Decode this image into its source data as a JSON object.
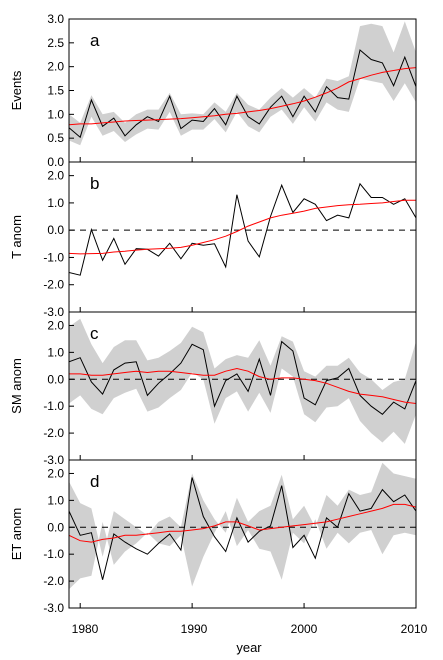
{
  "chart_data": [
    {
      "type": "line",
      "panel_label": "a",
      "ylabel": "Events",
      "ylim": [
        0.0,
        3.0
      ],
      "yticks": [
        "0.0",
        "0.5",
        "1.0",
        "1.5",
        "2.0",
        "2.5",
        "3.0"
      ],
      "xlim": [
        1979,
        2010
      ],
      "x": [
        1979,
        1980,
        1981,
        1982,
        1983,
        1984,
        1985,
        1986,
        1987,
        1988,
        1989,
        1990,
        1991,
        1992,
        1993,
        1994,
        1995,
        1996,
        1997,
        1998,
        1999,
        2000,
        2001,
        2002,
        2003,
        2004,
        2005,
        2006,
        2007,
        2008,
        2009,
        2010
      ],
      "zero_line": false,
      "series": [
        {
          "color": "#000000",
          "values": [
            0.72,
            0.52,
            1.3,
            0.75,
            0.92,
            0.55,
            0.78,
            0.95,
            0.85,
            1.38,
            0.7,
            0.88,
            0.85,
            1.12,
            0.78,
            1.38,
            0.95,
            0.8,
            1.15,
            1.38,
            0.95,
            1.38,
            1.05,
            1.58,
            1.35,
            1.32,
            2.35,
            2.15,
            2.08,
            1.6,
            2.2,
            1.58
          ]
        },
        {
          "color": "#ff0000",
          "values": [
            0.78,
            0.8,
            0.8,
            0.82,
            0.84,
            0.86,
            0.87,
            0.88,
            0.89,
            0.9,
            0.91,
            0.93,
            0.95,
            0.97,
            1.0,
            1.02,
            1.05,
            1.08,
            1.12,
            1.17,
            1.22,
            1.28,
            1.36,
            1.45,
            1.55,
            1.68,
            1.75,
            1.82,
            1.88,
            1.92,
            1.96,
            1.98
          ]
        }
      ],
      "band_upper": [
        1.0,
        0.82,
        1.4,
        1.0,
        1.05,
        0.82,
        1.0,
        1.1,
        1.1,
        1.45,
        1.0,
        1.02,
        1.0,
        1.25,
        1.05,
        1.45,
        1.2,
        1.1,
        1.35,
        1.55,
        1.35,
        1.55,
        1.35,
        1.75,
        1.7,
        1.8,
        2.85,
        2.9,
        2.85,
        2.3,
        2.95,
        2.3
      ],
      "band_lower": [
        0.45,
        0.35,
        0.95,
        0.55,
        0.65,
        0.42,
        0.58,
        0.7,
        0.68,
        1.05,
        0.55,
        0.68,
        0.68,
        0.9,
        0.62,
        1.05,
        0.75,
        0.62,
        0.95,
        1.1,
        0.8,
        1.15,
        0.85,
        1.25,
        1.1,
        1.05,
        1.75,
        1.7,
        1.65,
        1.28,
        1.65,
        1.25
      ]
    },
    {
      "type": "line",
      "panel_label": "b",
      "ylabel": "T anom",
      "ylim": [
        -3.0,
        2.5
      ],
      "yticks": [
        "-3.0",
        "-2.0",
        "-1.0",
        "0.0",
        "1.0",
        "2.0"
      ],
      "xlim": [
        1979,
        2010
      ],
      "x": [
        1979,
        1980,
        1981,
        1982,
        1983,
        1984,
        1985,
        1986,
        1987,
        1988,
        1989,
        1990,
        1991,
        1992,
        1993,
        1994,
        1995,
        1996,
        1997,
        1998,
        1999,
        2000,
        2001,
        2002,
        2003,
        2004,
        2005,
        2006,
        2007,
        2008,
        2009,
        2010
      ],
      "zero_line": true,
      "series": [
        {
          "color": "#000000",
          "values": [
            -1.55,
            -1.65,
            0.02,
            -1.1,
            -0.3,
            -1.25,
            -0.68,
            -0.7,
            -0.95,
            -0.48,
            -1.05,
            -0.48,
            -0.55,
            -0.5,
            -1.35,
            1.3,
            -0.4,
            -0.98,
            0.5,
            1.65,
            0.65,
            1.15,
            0.95,
            0.35,
            0.55,
            0.45,
            1.7,
            1.2,
            1.2,
            0.95,
            1.15,
            0.45
          ]
        },
        {
          "color": "#ff0000",
          "values": [
            -0.85,
            -0.87,
            -0.86,
            -0.85,
            -0.8,
            -0.77,
            -0.73,
            -0.7,
            -0.68,
            -0.66,
            -0.63,
            -0.55,
            -0.45,
            -0.35,
            -0.22,
            -0.05,
            0.15,
            0.3,
            0.45,
            0.55,
            0.62,
            0.7,
            0.8,
            0.85,
            0.9,
            0.93,
            0.95,
            0.98,
            1.0,
            1.05,
            1.1,
            1.1
          ]
        }
      ]
    },
    {
      "type": "line",
      "panel_label": "c",
      "ylabel": "SM anom",
      "ylim": [
        -3.0,
        2.5
      ],
      "yticks": [
        "-3.0",
        "-2.0",
        "-1.0",
        "0.0",
        "1.0",
        "2.0"
      ],
      "xlim": [
        1979,
        2010
      ],
      "x": [
        1979,
        1980,
        1981,
        1982,
        1983,
        1984,
        1985,
        1986,
        1987,
        1988,
        1989,
        1990,
        1991,
        1992,
        1993,
        1994,
        1995,
        1996,
        1997,
        1998,
        1999,
        2000,
        2001,
        2002,
        2003,
        2004,
        2005,
        2006,
        2007,
        2008,
        2009,
        2010
      ],
      "zero_line": true,
      "series": [
        {
          "color": "#000000",
          "values": [
            0.65,
            0.8,
            -0.1,
            -0.55,
            0.35,
            0.6,
            0.65,
            -0.6,
            -0.15,
            0.2,
            0.6,
            1.3,
            1.1,
            -1.0,
            -0.05,
            0.2,
            -0.45,
            0.75,
            -0.6,
            1.4,
            1.05,
            -0.7,
            -0.95,
            -0.05,
            0.05,
            0.4,
            -0.6,
            -1.0,
            -1.3,
            -0.85,
            -1.1,
            -0.05
          ]
        },
        {
          "color": "#ff0000",
          "values": [
            0.2,
            0.2,
            0.15,
            0.15,
            0.2,
            0.25,
            0.3,
            0.25,
            0.3,
            0.3,
            0.25,
            0.2,
            0.15,
            0.15,
            0.3,
            0.4,
            0.3,
            0.1,
            0.0,
            0.05,
            0.05,
            0.0,
            -0.05,
            -0.15,
            -0.3,
            -0.45,
            -0.55,
            -0.6,
            -0.65,
            -0.75,
            -0.85,
            -0.9
          ]
        }
      ],
      "band_upper": [
        1.95,
        2.25,
        1.3,
        0.6,
        1.2,
        1.45,
        1.45,
        0.7,
        0.8,
        1.05,
        1.35,
        1.95,
        1.75,
        0.4,
        0.75,
        0.9,
        0.8,
        1.45,
        0.5,
        1.6,
        1.4,
        0.3,
        0.1,
        0.5,
        0.5,
        0.8,
        0.25,
        0.0,
        -0.4,
        -0.1,
        0.0,
        1.4
      ],
      "band_lower": [
        -0.9,
        -0.6,
        -1.1,
        -1.3,
        -0.7,
        -0.5,
        -0.35,
        -1.2,
        -1.05,
        -0.7,
        -0.4,
        0.25,
        0.0,
        -1.65,
        -0.7,
        -0.45,
        -1.2,
        -0.5,
        -1.25,
        0.4,
        0.1,
        -1.3,
        -1.6,
        -1.05,
        -1.0,
        -0.7,
        -1.55,
        -2.0,
        -2.35,
        -1.95,
        -2.4,
        -1.3
      ]
    },
    {
      "type": "line",
      "panel_label": "d",
      "ylabel": "ET anom",
      "ylim": [
        -3.0,
        2.5
      ],
      "yticks": [
        "-3.0",
        "-2.0",
        "-1.0",
        "0.0",
        "1.0",
        "2.0"
      ],
      "xlim": [
        1979,
        2010
      ],
      "x": [
        1979,
        1980,
        1981,
        1982,
        1983,
        1984,
        1985,
        1986,
        1987,
        1988,
        1989,
        1990,
        1991,
        1992,
        1993,
        1994,
        1995,
        1996,
        1997,
        1998,
        1999,
        2000,
        2001,
        2002,
        2003,
        2004,
        2005,
        2006,
        2007,
        2008,
        2009,
        2010
      ],
      "zero_line": true,
      "series": [
        {
          "color": "#000000",
          "values": [
            0.6,
            -0.3,
            -0.2,
            -1.95,
            -0.25,
            -0.55,
            -0.8,
            -1.0,
            -0.6,
            -0.25,
            -0.85,
            1.85,
            0.4,
            -0.35,
            -0.9,
            0.35,
            -0.55,
            -0.15,
            0.05,
            1.55,
            -0.75,
            -0.3,
            -1.15,
            0.35,
            0.0,
            1.25,
            0.6,
            0.7,
            1.4,
            0.95,
            1.2,
            0.6
          ]
        },
        {
          "color": "#ff0000",
          "values": [
            -0.3,
            -0.5,
            -0.55,
            -0.45,
            -0.4,
            -0.3,
            -0.3,
            -0.25,
            -0.2,
            -0.15,
            -0.15,
            -0.1,
            -0.05,
            0.05,
            0.2,
            0.2,
            0.05,
            -0.1,
            -0.05,
            0.0,
            0.05,
            0.1,
            0.15,
            0.2,
            0.3,
            0.4,
            0.5,
            0.6,
            0.7,
            0.85,
            0.85,
            0.75
          ]
        }
      ],
      "band_upper": [
        1.7,
        0.9,
        0.7,
        -1.1,
        0.6,
        0.3,
        0.0,
        -0.3,
        0.2,
        0.4,
        0.0,
        2.0,
        1.0,
        0.3,
        -0.2,
        1.1,
        0.2,
        0.6,
        0.8,
        1.95,
        0.3,
        0.8,
        0.0,
        1.2,
        0.8,
        1.4,
        1.2,
        1.3,
        2.4,
        2.0,
        1.9,
        1.8
      ]
    }
  ],
  "x_axis": {
    "ticks": [
      "1980",
      "1990",
      "2000",
      "2010"
    ],
    "label": "year"
  }
}
